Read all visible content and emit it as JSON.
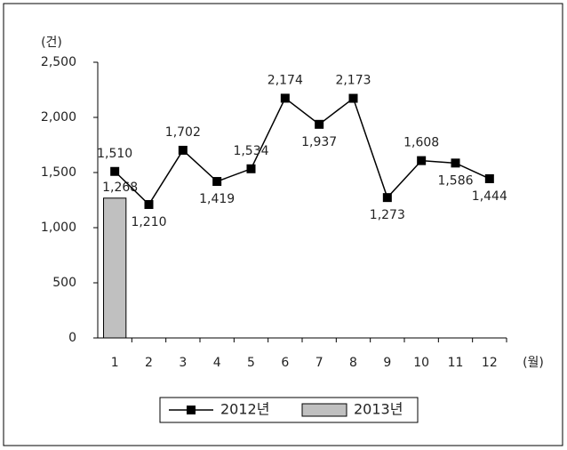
{
  "chart_data": {
    "type": "line",
    "y_axis_label": "(건)",
    "x_axis_label": "(월)",
    "categories": [
      "1",
      "2",
      "3",
      "4",
      "5",
      "6",
      "7",
      "8",
      "9",
      "10",
      "11",
      "12"
    ],
    "series": [
      {
        "name": "2012년",
        "type": "line",
        "color": "#000000",
        "values": [
          1510,
          1210,
          1702,
          1419,
          1534,
          2174,
          1937,
          2173,
          1273,
          1608,
          1586,
          1444
        ],
        "value_labels": [
          "1,510",
          "1,210",
          "1,702",
          "1,419",
          "1,534",
          "2,174",
          "1,937",
          "2,173",
          "1,273",
          "1,608",
          "1,586",
          "1,444"
        ]
      },
      {
        "name": "2013년",
        "type": "bar",
        "color": "#c0c0c0",
        "values": [
          1268,
          null,
          null,
          null,
          null,
          null,
          null,
          null,
          null,
          null,
          null,
          null
        ],
        "value_labels": [
          "1,268",
          null,
          null,
          null,
          null,
          null,
          null,
          null,
          null,
          null,
          null,
          null
        ]
      }
    ],
    "ylim": [
      0,
      2500
    ],
    "yticks": [
      0,
      500,
      {
        "value": 1000,
        "label": "1,000"
      },
      {
        "value": 1500,
        "label": "1,500"
      },
      {
        "value": 2000,
        "label": "2,000"
      },
      {
        "value": 2500,
        "label": "2,500"
      }
    ],
    "legend": "bottom"
  }
}
